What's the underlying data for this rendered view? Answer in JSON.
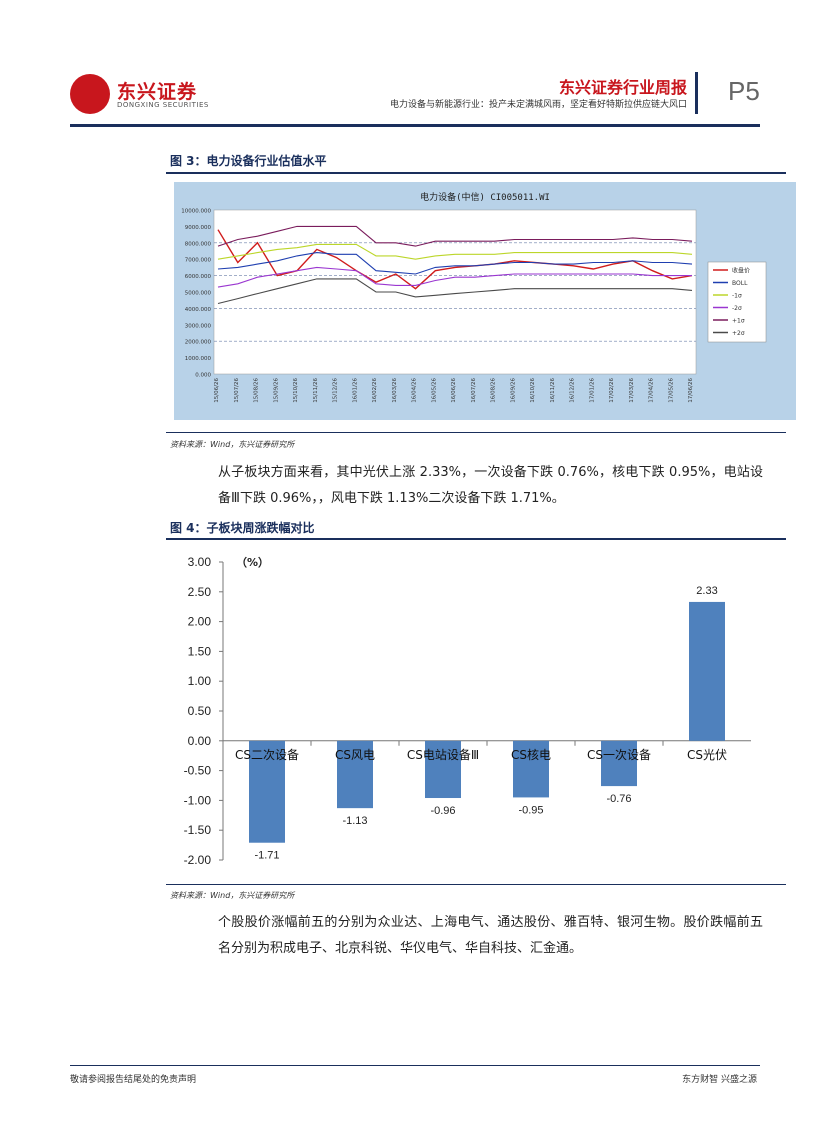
{
  "header": {
    "logo_cn": "东兴证券",
    "logo_en": "DONGXING SECURITIES",
    "title": "东兴证券行业周报",
    "subtitle": "电力设备与新能源行业：投产未定满城风雨，坚定看好特斯拉供应链大风口",
    "page": "P5"
  },
  "figure3": {
    "title": "图 3：电力设备行业估值水平",
    "source": "资料来源：Wind，东兴证券研究所",
    "chart_data": {
      "type": "line",
      "title": "电力设备(中信) CI005011.WI",
      "ylim": [
        0,
        10000
      ],
      "yticks": [
        "0.000",
        "1000.000",
        "2000.000",
        "3000.000",
        "4000.000",
        "5000.000",
        "6000.000",
        "7000.000",
        "8000.000",
        "9000.000",
        "10000.000"
      ],
      "x": [
        "15/06/26",
        "15/07/26",
        "15/08/26",
        "15/09/26",
        "15/10/26",
        "15/11/26",
        "15/12/26",
        "16/01/26",
        "16/02/26",
        "16/03/26",
        "16/04/26",
        "16/05/26",
        "16/06/26",
        "16/07/26",
        "16/08/26",
        "16/09/26",
        "16/10/26",
        "16/11/26",
        "16/12/26",
        "17/01/26",
        "17/02/26",
        "17/03/26",
        "17/04/26",
        "17/05/26",
        "17/06/26"
      ],
      "legend": [
        "收盘价",
        "BOLL",
        "-1σ",
        "-2σ",
        "+1σ",
        "+2σ"
      ],
      "legend_position": "right",
      "series": [
        {
          "name": "收盘价",
          "color": "#d01c1c",
          "values": [
            8800,
            6800,
            8000,
            6000,
            6300,
            7600,
            7100,
            6300,
            5600,
            6100,
            5200,
            6300,
            6500,
            6600,
            6700,
            6900,
            6800,
            6700,
            6600,
            6400,
            6700,
            6900,
            6300,
            5800,
            6000
          ]
        },
        {
          "name": "BOLL",
          "color": "#1f3fb0",
          "values": [
            6400,
            6500,
            6700,
            6900,
            7200,
            7400,
            7300,
            7300,
            6300,
            6200,
            6100,
            6500,
            6600,
            6600,
            6700,
            6800,
            6800,
            6700,
            6700,
            6800,
            6800,
            6900,
            6800,
            6800,
            6700
          ]
        },
        {
          "name": "-1σ",
          "color": "#bcd62a",
          "values": [
            7000,
            7200,
            7400,
            7600,
            7700,
            7900,
            7900,
            7900,
            7200,
            7200,
            7000,
            7200,
            7300,
            7300,
            7300,
            7400,
            7400,
            7400,
            7400,
            7400,
            7400,
            7400,
            7400,
            7400,
            7300
          ]
        },
        {
          "name": "-2σ",
          "color": "#9a36d0",
          "values": [
            5300,
            5500,
            5900,
            6100,
            6300,
            6500,
            6400,
            6300,
            5500,
            5400,
            5400,
            5700,
            5900,
            5900,
            6000,
            6100,
            6100,
            6100,
            6100,
            6100,
            6100,
            6100,
            6000,
            6000,
            6000
          ]
        },
        {
          "name": "+1σ",
          "color": "#7a1c5c",
          "values": [
            7800,
            8200,
            8400,
            8700,
            9000,
            9000,
            9000,
            9000,
            8000,
            8000,
            7800,
            8100,
            8100,
            8100,
            8100,
            8200,
            8200,
            8200,
            8200,
            8200,
            8200,
            8300,
            8200,
            8200,
            8100
          ]
        },
        {
          "name": "+2σ",
          "color": "#4a4a4a",
          "values": [
            4300,
            4600,
            4900,
            5200,
            5500,
            5800,
            5800,
            5800,
            5000,
            5000,
            4700,
            4800,
            4900,
            5000,
            5100,
            5200,
            5200,
            5200,
            5200,
            5200,
            5200,
            5200,
            5200,
            5200,
            5100
          ]
        }
      ]
    }
  },
  "paragraph1": "从子板块方面来看，其中光伏上涨 2.33%，一次设备下跌 0.76%，核电下跌 0.95%，电站设备Ⅲ下跌 0.96%，，风电下跌 1.13%二次设备下跌 1.71%。",
  "figure4": {
    "title": "图 4：子板块周涨跌幅对比",
    "source": "资料来源：Wind，东兴证券研究所",
    "chart_data": {
      "type": "bar",
      "categories": [
        "CS二次设备",
        "CS风电",
        "CS电站设备Ⅲ",
        "CS核电",
        "CS一次设备",
        "CS光伏"
      ],
      "values": [
        -1.71,
        -1.13,
        -0.96,
        -0.95,
        -0.76,
        2.33
      ],
      "value_labels": [
        "-1.71",
        "-1.13",
        "-0.96",
        "-0.95",
        "-0.76",
        "2.33"
      ],
      "ylabel": "（%）",
      "ylim": [
        -2.0,
        3.0
      ],
      "yticks": [
        "3.00",
        "2.50",
        "2.00",
        "1.50",
        "1.00",
        "0.50",
        "0.00",
        "-0.50",
        "-1.00",
        "-1.50",
        "-2.00"
      ],
      "bar_color": "#4f81bd"
    }
  },
  "paragraph2": "个股股价涨幅前五的分别为众业达、上海电气、通达股份、雅百特、银河生物。股价跌幅前五名分别为积成电子、北京科锐、华仪电气、华自科技、汇金通。",
  "footer": {
    "left": "敬请参阅报告结尾处的免责声明",
    "right": "东方财智 兴盛之源"
  }
}
